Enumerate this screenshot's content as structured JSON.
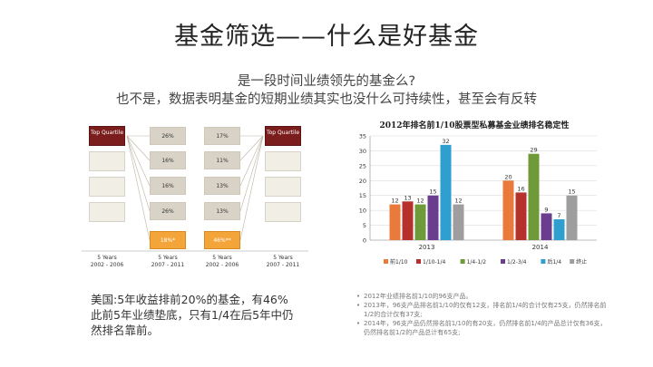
{
  "slide": {
    "title": "基金筛选——什么是好基金",
    "subtitle1": "是一段时间业绩领先的基金么?",
    "subtitle2": "也不是，数据表明基金的短期业绩其实也没什么可持续性，甚至会有反转"
  },
  "left_panel": {
    "top_quartile_label": "Top Quartile",
    "middle_col_a": [
      "26%",
      "16%",
      "16%",
      "26%",
      "18%*"
    ],
    "middle_col_b": [
      "17%",
      "11%",
      "13%",
      "13%",
      "46%**"
    ],
    "period_labels": [
      {
        "years": "5 Years",
        "range": "2002 - 2006"
      },
      {
        "years": "5 Years",
        "range": "2007 - 2011"
      },
      {
        "years": "5 Years",
        "range": "2002 - 2006"
      },
      {
        "years": "5 Years",
        "range": "2007 - 2011"
      }
    ],
    "note": "美国:5年收益排前20%的基金，有46%此前5年业绩垫底，只有1/4在后5年中仍然排名靠前。"
  },
  "chart_data": {
    "type": "bar",
    "title": "2012年排名前1/10股票型私募基金业绩排名稳定性",
    "categories": [
      "2013",
      "2014"
    ],
    "ylim": [
      0,
      35
    ],
    "yticks": [
      0,
      5,
      10,
      15,
      20,
      25,
      30,
      35
    ],
    "grid": true,
    "legend_position": "bottom",
    "series": [
      {
        "name": "前1/10",
        "color": "#e97a3b",
        "values": [
          12,
          20
        ]
      },
      {
        "name": "1/10-1/4",
        "color": "#b7312c",
        "values": [
          13,
          16
        ]
      },
      {
        "name": "1/4-1/2",
        "color": "#6f9a3a",
        "values": [
          12,
          29
        ]
      },
      {
        "name": "1/2-3/4",
        "color": "#6b3d8f",
        "values": [
          15,
          9
        ]
      },
      {
        "name": "后1/4",
        "color": "#2f9fd0",
        "values": [
          32,
          7
        ]
      },
      {
        "name": "终止",
        "color": "#9e9e9e",
        "values": [
          12,
          15
        ]
      }
    ]
  },
  "right_notes": [
    "2012年业绩排名前1/10的96支产品。",
    "2013年，96支产品排名前1/10的仅有12支，排名前1/4的合计仅有25支，仍然排名前1/2的合计仅有37支;",
    "2014年，96支产品仍然排名前1/10的有20支，仍然排名前1/4的产品总计仅有36支，仍然排名前1/2的产品总计有65支;"
  ]
}
